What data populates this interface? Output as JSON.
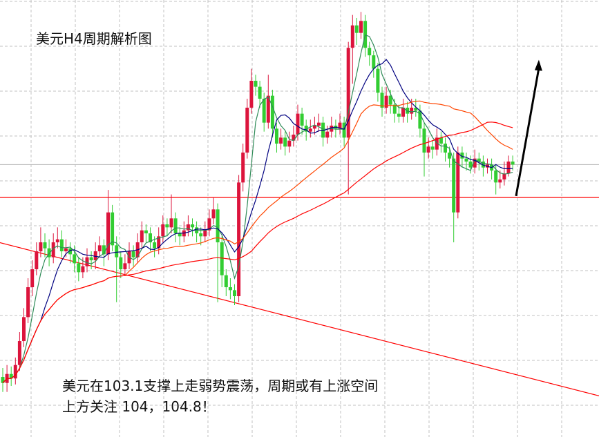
{
  "chart_data": {
    "type": "candlestick",
    "title": "美元H4周期解析图",
    "annotations": [
      "美元在103.1支撑上走弱势震荡，周期或有上涨空间",
      "上方关注 104，104.8！"
    ],
    "colors": {
      "up": "#dc143c",
      "down": "#32cd32",
      "grid": "#c0c0c0",
      "support": "#ff0000",
      "current_price_line": "#b4b4b4",
      "arrow": "#000000"
    },
    "moving_averages": [
      {
        "period": 5,
        "color": "#2e8b57"
      },
      {
        "period": 10,
        "color": "#000080"
      },
      {
        "period": 30,
        "color": "#ff4500"
      },
      {
        "period": 60,
        "color": "#ff0000"
      }
    ],
    "ylim": [
      101.75,
      104.35
    ],
    "grid": true,
    "support_level": 103.1,
    "current_price": 103.32,
    "trendline": [
      [
        -1,
        102.8
      ],
      [
        142,
        101.77
      ]
    ],
    "arrow": [
      [
        121.8,
        103.11
      ],
      [
        127.2,
        104.02
      ]
    ],
    "candles": [
      [
        101.9,
        101.96,
        101.8,
        101.86
      ],
      [
        101.86,
        101.98,
        101.8,
        101.92
      ],
      [
        101.92,
        101.97,
        101.84,
        101.89
      ],
      [
        101.89,
        102.03,
        101.85,
        101.98
      ],
      [
        101.98,
        102.2,
        101.94,
        102.14
      ],
      [
        102.14,
        102.36,
        102.1,
        102.3
      ],
      [
        102.3,
        102.56,
        102.26,
        102.5
      ],
      [
        102.5,
        102.68,
        102.44,
        102.62
      ],
      [
        102.62,
        102.8,
        102.58,
        102.74
      ],
      [
        102.74,
        102.9,
        102.7,
        102.8
      ],
      [
        102.8,
        102.86,
        102.7,
        102.76
      ],
      [
        102.76,
        102.82,
        102.64,
        102.7
      ],
      [
        102.7,
        102.86,
        102.66,
        102.8
      ],
      [
        102.8,
        102.9,
        102.76,
        102.82
      ],
      [
        102.82,
        102.88,
        102.7,
        102.74
      ],
      [
        102.74,
        102.82,
        102.7,
        102.76
      ],
      [
        102.76,
        102.8,
        102.66,
        102.72
      ],
      [
        102.72,
        102.78,
        102.6,
        102.66
      ],
      [
        102.66,
        102.7,
        102.54,
        102.6
      ],
      [
        102.6,
        102.7,
        102.56,
        102.64
      ],
      [
        102.64,
        102.76,
        102.6,
        102.7
      ],
      [
        102.7,
        102.74,
        102.62,
        102.68
      ],
      [
        102.68,
        102.8,
        102.62,
        102.74
      ],
      [
        102.74,
        102.84,
        102.7,
        102.78
      ],
      [
        102.78,
        102.82,
        102.64,
        102.72
      ],
      [
        102.72,
        103.15,
        102.68,
        103.0
      ],
      [
        103.0,
        103.05,
        102.74,
        102.78
      ],
      [
        102.78,
        102.84,
        102.4,
        102.7
      ],
      [
        102.7,
        102.74,
        102.56,
        102.62
      ],
      [
        102.62,
        102.72,
        102.58,
        102.66
      ],
      [
        102.66,
        102.8,
        102.62,
        102.74
      ],
      [
        102.74,
        102.78,
        102.64,
        102.7
      ],
      [
        102.7,
        102.86,
        102.66,
        102.8
      ],
      [
        102.8,
        102.94,
        102.76,
        102.88
      ],
      [
        102.88,
        102.92,
        102.8,
        102.86
      ],
      [
        102.86,
        102.9,
        102.74,
        102.8
      ],
      [
        102.8,
        102.84,
        102.7,
        102.76
      ],
      [
        102.76,
        102.9,
        102.72,
        102.84
      ],
      [
        102.84,
        102.98,
        102.8,
        102.92
      ],
      [
        102.92,
        102.96,
        102.84,
        102.9
      ],
      [
        102.9,
        103.12,
        102.86,
        102.96
      ],
      [
        102.96,
        103.0,
        102.8,
        102.86
      ],
      [
        102.86,
        102.9,
        102.78,
        102.84
      ],
      [
        102.84,
        102.94,
        102.8,
        102.88
      ],
      [
        102.88,
        102.98,
        102.84,
        102.92
      ],
      [
        102.92,
        102.96,
        102.84,
        102.9
      ],
      [
        102.9,
        102.94,
        102.8,
        102.86
      ],
      [
        102.86,
        102.9,
        102.78,
        102.84
      ],
      [
        102.84,
        102.94,
        102.8,
        102.88
      ],
      [
        102.88,
        103.02,
        102.84,
        102.96
      ],
      [
        102.96,
        103.1,
        102.92,
        103.02
      ],
      [
        103.02,
        103.06,
        102.4,
        102.8
      ],
      [
        102.8,
        102.84,
        102.5,
        102.58
      ],
      [
        102.58,
        102.62,
        102.44,
        102.5
      ],
      [
        102.5,
        102.56,
        102.42,
        102.48
      ],
      [
        102.48,
        102.52,
        102.38,
        102.44
      ],
      [
        102.44,
        103.25,
        102.4,
        103.2
      ],
      [
        103.2,
        103.46,
        103.14,
        103.4
      ],
      [
        103.4,
        103.76,
        103.36,
        103.7
      ],
      [
        103.7,
        103.96,
        103.66,
        103.88
      ],
      [
        103.88,
        103.92,
        103.78,
        103.84
      ],
      [
        103.84,
        103.88,
        103.7,
        103.76
      ],
      [
        103.76,
        103.8,
        103.54,
        103.6
      ],
      [
        103.6,
        103.92,
        103.56,
        103.78
      ],
      [
        103.78,
        103.82,
        103.5,
        103.56
      ],
      [
        103.56,
        103.6,
        103.4,
        103.46
      ],
      [
        103.46,
        103.56,
        103.42,
        103.5
      ],
      [
        103.5,
        103.54,
        103.38,
        103.44
      ],
      [
        103.44,
        103.54,
        103.4,
        103.48
      ],
      [
        103.48,
        103.58,
        103.44,
        103.52
      ],
      [
        103.52,
        103.72,
        103.48,
        103.66
      ],
      [
        103.66,
        103.7,
        103.52,
        103.58
      ],
      [
        103.58,
        103.62,
        103.48,
        103.54
      ],
      [
        103.54,
        103.62,
        103.5,
        103.56
      ],
      [
        103.56,
        103.64,
        103.52,
        103.58
      ],
      [
        103.58,
        103.66,
        103.54,
        103.6
      ],
      [
        103.6,
        103.64,
        103.44,
        103.5
      ],
      [
        103.5,
        103.58,
        103.46,
        103.54
      ],
      [
        103.54,
        103.64,
        103.5,
        103.58
      ],
      [
        103.58,
        103.62,
        103.5,
        103.56
      ],
      [
        103.56,
        103.66,
        103.52,
        103.6
      ],
      [
        103.6,
        103.64,
        103.44,
        103.5
      ],
      [
        103.5,
        104.14,
        103.12,
        104.1
      ],
      [
        104.1,
        104.32,
        103.86,
        104.25
      ],
      [
        104.25,
        104.3,
        104.12,
        104.2
      ],
      [
        104.2,
        104.34,
        104.16,
        104.28
      ],
      [
        104.28,
        104.32,
        104.04,
        104.1
      ],
      [
        104.1,
        104.14,
        103.98,
        104.05
      ],
      [
        104.05,
        104.08,
        103.9,
        103.96
      ],
      [
        103.96,
        104.0,
        103.74,
        103.8
      ],
      [
        103.8,
        103.84,
        103.64,
        103.7
      ],
      [
        103.7,
        103.84,
        103.66,
        103.78
      ],
      [
        103.78,
        103.82,
        103.66,
        103.72
      ],
      [
        103.72,
        103.76,
        103.6,
        103.66
      ],
      [
        103.66,
        103.72,
        103.6,
        103.64
      ],
      [
        103.64,
        103.76,
        103.6,
        103.7
      ],
      [
        103.7,
        103.74,
        103.6,
        103.66
      ],
      [
        103.66,
        103.76,
        103.62,
        103.7
      ],
      [
        103.7,
        103.76,
        103.64,
        103.68
      ],
      [
        103.68,
        103.72,
        103.5,
        103.56
      ],
      [
        103.56,
        103.6,
        103.24,
        103.4
      ],
      [
        103.4,
        103.5,
        103.36,
        103.44
      ],
      [
        103.44,
        103.48,
        103.36,
        103.42
      ],
      [
        103.42,
        103.56,
        103.38,
        103.5
      ],
      [
        103.5,
        103.54,
        103.4,
        103.46
      ],
      [
        103.46,
        103.5,
        103.34,
        103.4
      ],
      [
        103.4,
        103.44,
        103.3,
        103.36
      ],
      [
        103.36,
        103.4,
        102.8,
        103.0
      ],
      [
        103.0,
        103.44,
        102.96,
        103.4
      ],
      [
        103.4,
        103.44,
        103.3,
        103.36
      ],
      [
        103.36,
        103.4,
        103.28,
        103.34
      ],
      [
        103.34,
        103.38,
        103.26,
        103.3
      ],
      [
        103.3,
        103.42,
        103.26,
        103.36
      ],
      [
        103.36,
        103.4,
        103.28,
        103.34
      ],
      [
        103.34,
        103.38,
        103.24,
        103.3
      ],
      [
        103.3,
        103.36,
        103.26,
        103.32
      ],
      [
        103.32,
        103.36,
        103.22,
        103.28
      ],
      [
        103.28,
        103.32,
        103.12,
        103.2
      ],
      [
        103.2,
        103.28,
        103.16,
        103.22
      ],
      [
        103.22,
        103.34,
        103.18,
        103.26
      ],
      [
        103.26,
        103.38,
        103.24,
        103.34
      ],
      [
        103.34,
        103.38,
        103.28,
        103.32
      ]
    ]
  }
}
